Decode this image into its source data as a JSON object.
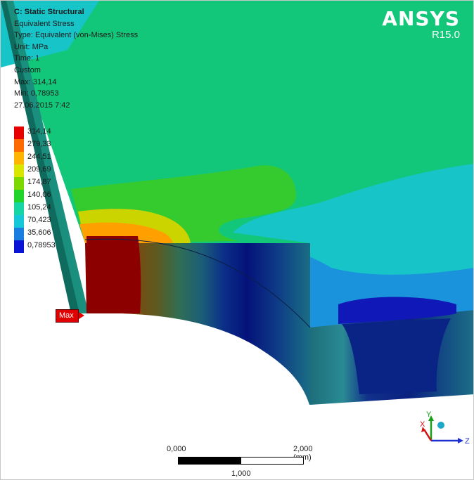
{
  "result": {
    "title": "C: Static Structural",
    "lines": [
      "Equivalent Stress",
      "Type: Equivalent (von-Mises) Stress",
      "Unit: MPa",
      "Time: 1",
      "Custom",
      "Max: 314,14",
      "Min: 0,78953",
      "27.06.2015 7:42"
    ]
  },
  "legend": {
    "items": [
      {
        "value": "314,14",
        "color": "#e60000"
      },
      {
        "value": "279,33",
        "color": "#ff6a00"
      },
      {
        "value": "244,51",
        "color": "#ffb400"
      },
      {
        "value": "209,69",
        "color": "#d9e600"
      },
      {
        "value": "174,87",
        "color": "#7dd800"
      },
      {
        "value": "140,06",
        "color": "#21d42a"
      },
      {
        "value": "105,24",
        "color": "#16d6a6"
      },
      {
        "value": "70,423",
        "color": "#14c8d8"
      },
      {
        "value": "35,606",
        "color": "#1a7de0"
      },
      {
        "value": "0,78953",
        "color": "#0a14d6"
      }
    ]
  },
  "brand": {
    "name": "ANSYS",
    "version": "R15.0"
  },
  "probe": {
    "label": "Max"
  },
  "triad": {
    "x": "X",
    "y": "Y",
    "z": "Z"
  },
  "scale": {
    "left": "0,000",
    "right": "2,000 (mm)",
    "middle": "1,000"
  }
}
